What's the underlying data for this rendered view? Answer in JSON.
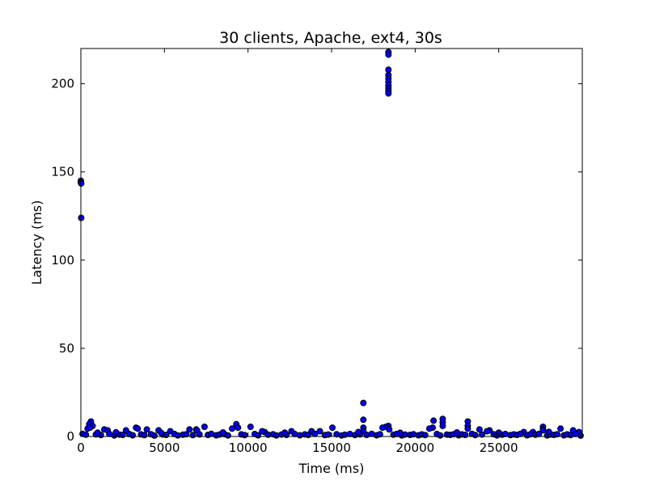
{
  "chart_data": {
    "type": "scatter",
    "title": "30 clients, Apache, ext4, 30s",
    "xlabel": "Time (ms)",
    "ylabel": "Latency (ms)",
    "xlim": [
      0,
      30000
    ],
    "ylim": [
      0,
      220
    ],
    "xticks": [
      0,
      5000,
      10000,
      15000,
      20000,
      25000
    ],
    "yticks": [
      0,
      50,
      100,
      150,
      200
    ],
    "grid": false,
    "marker_color": "#0000ff",
    "marker_edge_color": "#000000",
    "points": [
      [
        0,
        145
      ],
      [
        0,
        144
      ],
      [
        20,
        143.5
      ],
      [
        20,
        124
      ],
      [
        16900,
        19
      ],
      [
        16900,
        9.5
      ],
      [
        16900,
        5
      ],
      [
        16900,
        3
      ],
      [
        18400,
        218
      ],
      [
        18400,
        216.5
      ],
      [
        18400,
        208
      ],
      [
        18400,
        205
      ],
      [
        18400,
        203
      ],
      [
        18400,
        201
      ],
      [
        18400,
        199
      ],
      [
        18400,
        197.5
      ],
      [
        18400,
        196
      ],
      [
        18400,
        194.5
      ],
      [
        18400,
        6
      ],
      [
        18250,
        5.5
      ],
      [
        18050,
        5
      ],
      [
        18450,
        4
      ],
      [
        21100,
        9
      ],
      [
        21650,
        10
      ],
      [
        21650,
        8
      ],
      [
        21650,
        6
      ],
      [
        21050,
        5
      ],
      [
        23150,
        8.5
      ],
      [
        23150,
        6
      ],
      [
        23150,
        4.5
      ],
      [
        27650,
        5.5
      ],
      [
        27650,
        4
      ],
      [
        27650,
        3.5
      ],
      [
        600,
        8.5
      ],
      [
        500,
        7
      ],
      [
        700,
        6
      ],
      [
        400,
        4.5
      ],
      [
        550,
        5
      ],
      [
        9300,
        7
      ],
      [
        9050,
        4.5
      ],
      [
        9400,
        5
      ],
      [
        10150,
        5.5
      ],
      [
        7400,
        5.5
      ],
      [
        6900,
        4
      ],
      [
        6500,
        4
      ],
      [
        6950,
        3.5
      ],
      [
        1400,
        4
      ],
      [
        1600,
        3.5
      ],
      [
        3300,
        5
      ],
      [
        3400,
        4.5
      ],
      [
        2700,
        3.5
      ],
      [
        3950,
        4
      ],
      [
        4650,
        3.5
      ],
      [
        5350,
        3
      ],
      [
        15050,
        5
      ],
      [
        14300,
        3
      ],
      [
        13800,
        3
      ],
      [
        12600,
        3
      ],
      [
        11000,
        2.5
      ],
      [
        10850,
        3
      ],
      [
        20850,
        4.5
      ],
      [
        24450,
        3.5
      ],
      [
        23850,
        4
      ],
      [
        24300,
        3
      ],
      [
        28700,
        4.5
      ],
      [
        29450,
        3.5
      ],
      [
        26500,
        2.5
      ],
      [
        27050,
        2.5
      ],
      [
        29800,
        2.5
      ],
      [
        100,
        1.5
      ],
      [
        300,
        1
      ],
      [
        900,
        1.2
      ],
      [
        1200,
        0.8
      ],
      [
        1700,
        1.5
      ],
      [
        2000,
        0.6
      ],
      [
        2300,
        1.1
      ],
      [
        2500,
        0.9
      ],
      [
        2900,
        1.4
      ],
      [
        3100,
        0.7
      ],
      [
        3600,
        1.2
      ],
      [
        3800,
        0.8
      ],
      [
        4200,
        1.3
      ],
      [
        4400,
        0.5
      ],
      [
        4900,
        1.1
      ],
      [
        5100,
        0.9
      ],
      [
        5600,
        1.4
      ],
      [
        5800,
        0.6
      ],
      [
        6100,
        1
      ],
      [
        6300,
        1.3
      ],
      [
        6700,
        0.8
      ],
      [
        7100,
        1.2
      ],
      [
        7600,
        0.9
      ],
      [
        7800,
        1.5
      ],
      [
        8100,
        0.7
      ],
      [
        8300,
        1.1
      ],
      [
        8600,
        1.3
      ],
      [
        8800,
        0.6
      ],
      [
        9600,
        1.2
      ],
      [
        9800,
        0.8
      ],
      [
        10400,
        1.4
      ],
      [
        10600,
        0.7
      ],
      [
        11200,
        1
      ],
      [
        11500,
        1.3
      ],
      [
        11700,
        0.6
      ],
      [
        12000,
        1.1
      ],
      [
        12300,
        0.9
      ],
      [
        12800,
        1.4
      ],
      [
        13100,
        0.7
      ],
      [
        13400,
        1.2
      ],
      [
        13600,
        0.9
      ],
      [
        14000,
        1.5
      ],
      [
        14600,
        0.8
      ],
      [
        14800,
        1.1
      ],
      [
        15300,
        1.3
      ],
      [
        15600,
        0.6
      ],
      [
        15800,
        1
      ],
      [
        16100,
        1.4
      ],
      [
        16400,
        0.8
      ],
      [
        16700,
        1.2
      ],
      [
        17100,
        0.9
      ],
      [
        17400,
        1.5
      ],
      [
        17700,
        0.7
      ],
      [
        17900,
        1.3
      ],
      [
        18700,
        1
      ],
      [
        18900,
        1.4
      ],
      [
        19200,
        0.6
      ],
      [
        19400,
        1.1
      ],
      [
        19700,
        0.9
      ],
      [
        19900,
        1.3
      ],
      [
        20200,
        0.7
      ],
      [
        20400,
        1.2
      ],
      [
        20600,
        0.8
      ],
      [
        21300,
        1.4
      ],
      [
        21500,
        0.6
      ],
      [
        21900,
        1.1
      ],
      [
        22100,
        0.9
      ],
      [
        22300,
        1.3
      ],
      [
        22600,
        0.7
      ],
      [
        22800,
        1.2
      ],
      [
        23000,
        0.9
      ],
      [
        23400,
        1.5
      ],
      [
        23600,
        0.8
      ],
      [
        24000,
        1.1
      ],
      [
        24700,
        1.3
      ],
      [
        24900,
        0.6
      ],
      [
        25200,
        1
      ],
      [
        25400,
        1.4
      ],
      [
        25700,
        0.8
      ],
      [
        25900,
        1.2
      ],
      [
        26100,
        0.9
      ],
      [
        26300,
        1.5
      ],
      [
        26700,
        0.7
      ],
      [
        26900,
        1.3
      ],
      [
        27200,
        1
      ],
      [
        27400,
        1.4
      ],
      [
        27900,
        0.6
      ],
      [
        28100,
        1.1
      ],
      [
        28300,
        0.9
      ],
      [
        28500,
        1.3
      ],
      [
        28900,
        0.7
      ],
      [
        29100,
        1.2
      ],
      [
        29300,
        0.8
      ],
      [
        29600,
        1.4
      ],
      [
        29900,
        0.5
      ],
      [
        1000,
        2.2
      ],
      [
        2100,
        2.4
      ],
      [
        4800,
        2.1
      ],
      [
        8500,
        2.3
      ],
      [
        12200,
        2.2
      ],
      [
        16600,
        2.5
      ],
      [
        19100,
        2.1
      ],
      [
        22500,
        2.3
      ],
      [
        25000,
        2.2
      ],
      [
        28000,
        2.6
      ]
    ]
  }
}
